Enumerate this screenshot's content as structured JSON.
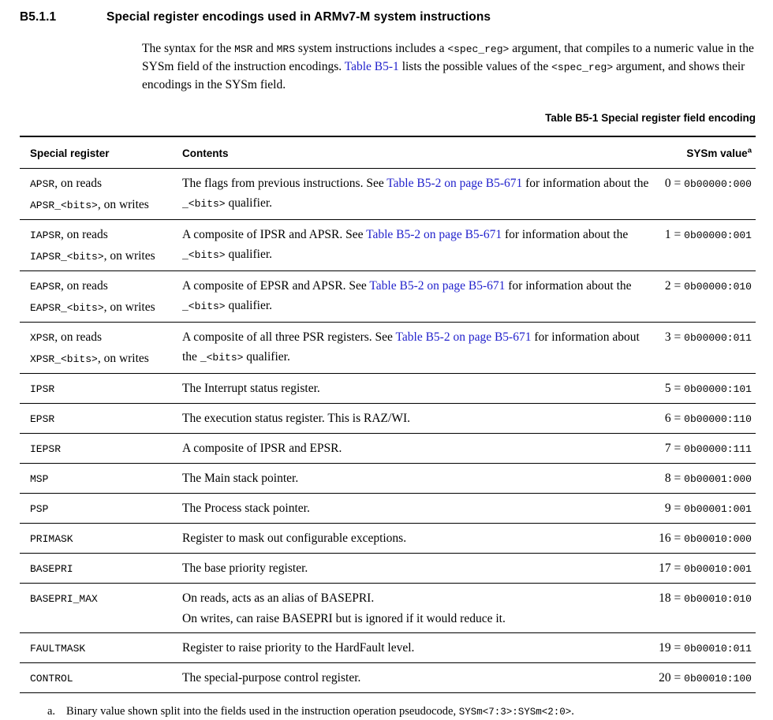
{
  "colors": {
    "link_blue": "#2222cc",
    "text": "#000000",
    "rule": "#000000",
    "background": "#ffffff"
  },
  "section": {
    "number": "B5.1.1",
    "title": "Special register encodings used in ARMv7-M system instructions"
  },
  "intro_paragraph": [
    [
      {
        "s": "The syntax for the "
      },
      {
        "m": "MSR"
      },
      {
        "s": " and "
      },
      {
        "m": "MRS"
      },
      {
        "s": " system instructions includes a "
      },
      {
        "m": "<spec_reg>"
      },
      {
        "s": " argument, that compiles to a numeric value in the SYSm field of the instruction encodings. "
      },
      {
        "l": "Table B5-1",
        "name": "table-b5-1-link"
      },
      {
        "s": " lists the possible values of the "
      },
      {
        "m": "<spec_reg>"
      },
      {
        "s": " argument, and shows their encodings in the SYSm field."
      }
    ]
  ],
  "table_caption": "Table B5-1 Special register field encoding",
  "table": {
    "headers": {
      "register": "Special register",
      "contents": "Contents",
      "value": "SYSm value",
      "value_footnote_marker": "a"
    },
    "rows": [
      {
        "register": [
          [
            {
              "m": "APSR"
            },
            {
              "s": ", on reads"
            }
          ],
          [
            {
              "m": "APSR_<bits>"
            },
            {
              "s": ", on writes"
            }
          ]
        ],
        "contents": [
          [
            {
              "s": "The flags from previous instructions. See "
            },
            {
              "l": "Table B5-2 on page B5-671",
              "name": "table-b5-2-link"
            },
            {
              "s": " for information about the "
            },
            {
              "m": "_<bits>"
            },
            {
              "s": " qualifier."
            }
          ]
        ],
        "value": [
          [
            {
              "s": "0 = "
            },
            {
              "m": "0b00000:000"
            }
          ]
        ]
      },
      {
        "register": [
          [
            {
              "m": "IAPSR"
            },
            {
              "s": ", on reads"
            }
          ],
          [
            {
              "m": "IAPSR_<bits>"
            },
            {
              "s": ", on writes"
            }
          ]
        ],
        "contents": [
          [
            {
              "s": "A composite of IPSR and APSR. See "
            },
            {
              "l": "Table B5-2 on page B5-671",
              "name": "table-b5-2-link"
            },
            {
              "s": " for information about the "
            },
            {
              "m": "_<bits>"
            },
            {
              "s": " qualifier."
            }
          ]
        ],
        "value": [
          [
            {
              "s": "1 = "
            },
            {
              "m": "0b00000:001"
            }
          ]
        ]
      },
      {
        "register": [
          [
            {
              "m": "EAPSR"
            },
            {
              "s": ", on reads"
            }
          ],
          [
            {
              "m": "EAPSR_<bits>"
            },
            {
              "s": ", on writes"
            }
          ]
        ],
        "contents": [
          [
            {
              "s": "A composite of EPSR and APSR. See "
            },
            {
              "l": "Table B5-2 on page B5-671",
              "name": "table-b5-2-link"
            },
            {
              "s": " for information about the "
            },
            {
              "m": "_<bits>"
            },
            {
              "s": " qualifier."
            }
          ]
        ],
        "value": [
          [
            {
              "s": "2 = "
            },
            {
              "m": "0b00000:010"
            }
          ]
        ]
      },
      {
        "register": [
          [
            {
              "m": "XPSR"
            },
            {
              "s": ", on reads"
            }
          ],
          [
            {
              "m": "XPSR_<bits>"
            },
            {
              "s": ", on writes"
            }
          ]
        ],
        "contents": [
          [
            {
              "s": "A composite of all three PSR registers. See "
            },
            {
              "l": "Table B5-2 on page B5-671",
              "name": "table-b5-2-link"
            },
            {
              "s": " for information about the "
            },
            {
              "m": "_<bits>"
            },
            {
              "s": " qualifier."
            }
          ]
        ],
        "value": [
          [
            {
              "s": "3 = "
            },
            {
              "m": "0b00000:011"
            }
          ]
        ]
      },
      {
        "register": [
          [
            {
              "m": "IPSR"
            }
          ]
        ],
        "contents": [
          [
            {
              "s": "The Interrupt status register."
            }
          ]
        ],
        "value": [
          [
            {
              "s": "5 = "
            },
            {
              "m": "0b00000:101"
            }
          ]
        ]
      },
      {
        "register": [
          [
            {
              "m": "EPSR"
            }
          ]
        ],
        "contents": [
          [
            {
              "s": "The execution status register. This is RAZ/WI."
            }
          ]
        ],
        "value": [
          [
            {
              "s": "6 = "
            },
            {
              "m": "0b00000:110"
            }
          ]
        ]
      },
      {
        "register": [
          [
            {
              "m": "IEPSR"
            }
          ]
        ],
        "contents": [
          [
            {
              "s": "A composite of IPSR and EPSR."
            }
          ]
        ],
        "value": [
          [
            {
              "s": "7 = "
            },
            {
              "m": "0b00000:111"
            }
          ]
        ]
      },
      {
        "register": [
          [
            {
              "m": "MSP"
            }
          ]
        ],
        "contents": [
          [
            {
              "s": "The Main stack pointer."
            }
          ]
        ],
        "value": [
          [
            {
              "s": "8 = "
            },
            {
              "m": "0b00001:000"
            }
          ]
        ]
      },
      {
        "register": [
          [
            {
              "m": "PSP"
            }
          ]
        ],
        "contents": [
          [
            {
              "s": "The Process stack pointer."
            }
          ]
        ],
        "value": [
          [
            {
              "s": "9 = "
            },
            {
              "m": "0b00001:001"
            }
          ]
        ]
      },
      {
        "register": [
          [
            {
              "m": "PRIMASK"
            }
          ]
        ],
        "contents": [
          [
            {
              "s": "Register to mask out configurable exceptions."
            }
          ]
        ],
        "value": [
          [
            {
              "s": "16 = "
            },
            {
              "m": "0b00010:000"
            }
          ]
        ]
      },
      {
        "register": [
          [
            {
              "m": "BASEPRI"
            }
          ]
        ],
        "contents": [
          [
            {
              "s": "The base priority register."
            }
          ]
        ],
        "value": [
          [
            {
              "s": "17 = "
            },
            {
              "m": "0b00010:001"
            }
          ]
        ]
      },
      {
        "register": [
          [
            {
              "m": "BASEPRI_MAX"
            }
          ]
        ],
        "contents": [
          [
            {
              "s": "On reads, acts as an alias of BASEPRI."
            }
          ],
          [
            {
              "s": "On writes, can raise BASEPRI but is ignored if it would reduce it."
            }
          ]
        ],
        "value": [
          [
            {
              "s": "18 = "
            },
            {
              "m": "0b00010:010"
            }
          ]
        ]
      },
      {
        "register": [
          [
            {
              "m": "FAULTMASK"
            }
          ]
        ],
        "contents": [
          [
            {
              "s": "Register to raise priority to the HardFault level."
            }
          ]
        ],
        "value": [
          [
            {
              "s": "19 = "
            },
            {
              "m": "0b00010:011"
            }
          ]
        ]
      },
      {
        "register": [
          [
            {
              "m": "CONTROL"
            }
          ]
        ],
        "contents": [
          [
            {
              "s": "The special-purpose control register."
            }
          ]
        ],
        "value": [
          [
            {
              "s": "20 = "
            },
            {
              "m": "0b00010:100"
            }
          ]
        ]
      }
    ]
  },
  "footnote": {
    "marker": "a.",
    "segments": [
      {
        "s": "Binary value shown split into the fields used in the instruction operation pseudocode, "
      },
      {
        "m": "SYSm<7:3>:SYSm<2:0>"
      },
      {
        "s": "."
      }
    ]
  }
}
